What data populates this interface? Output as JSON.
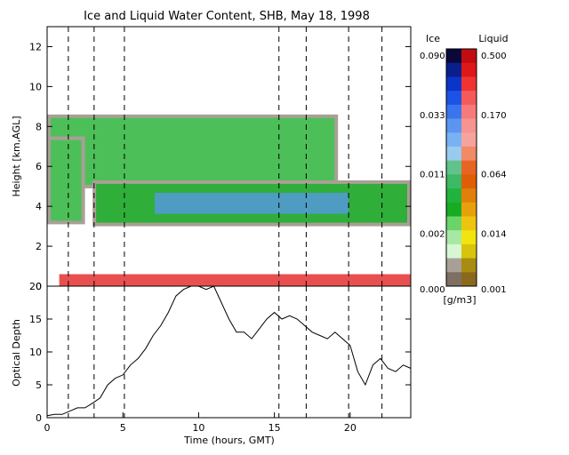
{
  "chart_data": [
    {
      "type": "heatmap",
      "title": "Ice and Liquid Water Content, SHB, May 18, 1998",
      "ylabel": "Height [km,AGL]",
      "xlim": [
        0,
        24
      ],
      "ylim": [
        0,
        13
      ],
      "y_ticks": [
        "0",
        "2",
        "4",
        "6",
        "8",
        "10",
        "12"
      ],
      "ice_scale": {
        "label": "Ice",
        "ticks": [
          "0.090",
          "0.033",
          "0.011",
          "0.002",
          "0.000"
        ],
        "colors": [
          "#08083a",
          "#0a1f8c",
          "#0b34c8",
          "#1c52e6",
          "#3a75ee",
          "#5b95f0",
          "#79b1f2",
          "#98cbee",
          "#62c28c",
          "#3db865",
          "#22b33e",
          "#17ab24",
          "#6ad46a",
          "#a6e8a4",
          "#d8f6d4",
          "#a8a096",
          "#7e6e64"
        ]
      },
      "liquid_scale": {
        "label": "Liquid",
        "ticks": [
          "0.500",
          "0.170",
          "0.064",
          "0.014",
          "0.001"
        ],
        "colors": [
          "#c20c12",
          "#de1818",
          "#ef3333",
          "#f35a5a",
          "#f67a7a",
          "#f59490",
          "#f4a49c",
          "#f28a66",
          "#e86424",
          "#de5e08",
          "#e07f0a",
          "#e6a00c",
          "#edc50e",
          "#f2e40e",
          "#d8c40a",
          "#a88c12",
          "#8a6a1a"
        ]
      },
      "units": "[g/m3]",
      "cloud_layers": [
        {
          "phase": "ice",
          "start_h": 0.0,
          "end_h": 19.2,
          "base_km": 4.9,
          "top_km": 8.6,
          "dominant_ice": "0.002-0.011"
        },
        {
          "phase": "ice",
          "start_h": 0.0,
          "end_h": 2.5,
          "base_km": 3.1,
          "top_km": 7.5,
          "dominant_ice": "0.002"
        },
        {
          "phase": "ice",
          "start_h": 3.0,
          "end_h": 24.0,
          "base_km": 3.0,
          "top_km": 5.3,
          "dominant_ice": "0.011-0.033"
        },
        {
          "phase": "liquid",
          "start_h": 0.8,
          "end_h": 24.0,
          "base_km": 0.0,
          "top_km": 0.6,
          "dominant_liquid": "0.064-0.500"
        }
      ],
      "vertical_markers_h": [
        1.4,
        3.1,
        5.1,
        15.3,
        17.1,
        19.9,
        22.1
      ]
    },
    {
      "type": "line",
      "ylabel": "Optical Depth",
      "xlabel": "Time (hours, GMT)",
      "xlim": [
        0,
        24
      ],
      "ylim": [
        0,
        20
      ],
      "x_ticks": [
        "0",
        "5",
        "10",
        "15",
        "20"
      ],
      "y_ticks": [
        "0",
        "5",
        "10",
        "15",
        "20"
      ],
      "series": [
        {
          "x": [
            0,
            0.5,
            1.0,
            1.5,
            2.0,
            2.5,
            3.0,
            3.5,
            4.0,
            4.5,
            5.0,
            5.5,
            6.0,
            6.5,
            7.0,
            7.5,
            8.0,
            8.5,
            9.0,
            9.5,
            10.0,
            10.5,
            11.0,
            11.5,
            12.0,
            12.5,
            13.0,
            13.5,
            14.0,
            14.5,
            15.0,
            15.5,
            16.0,
            16.5,
            17.0,
            17.5,
            18.0,
            18.5,
            19.0,
            19.5,
            20.0,
            20.5,
            21.0,
            21.5,
            22.0,
            22.5,
            23.0,
            23.5,
            24.0
          ],
          "y": [
            0.3,
            0.5,
            0.5,
            1.0,
            1.5,
            1.5,
            2.2,
            3.0,
            5.0,
            6.0,
            6.5,
            8.0,
            9.0,
            10.5,
            12.5,
            14.0,
            16.0,
            18.5,
            19.5,
            20.0,
            20.0,
            19.5,
            20.0,
            17.5,
            15.0,
            13.0,
            13.0,
            12.0,
            13.5,
            15.0,
            16.0,
            15.0,
            15.5,
            15.0,
            14.0,
            13.0,
            12.5,
            12.0,
            13.0,
            12.0,
            11.0,
            7.0,
            5.0,
            8.0,
            9.0,
            7.5,
            7.0,
            8.0,
            7.5
          ]
        }
      ],
      "vertical_markers_h": [
        1.4,
        3.1,
        5.1,
        15.3,
        17.1,
        19.9,
        22.1
      ]
    }
  ]
}
